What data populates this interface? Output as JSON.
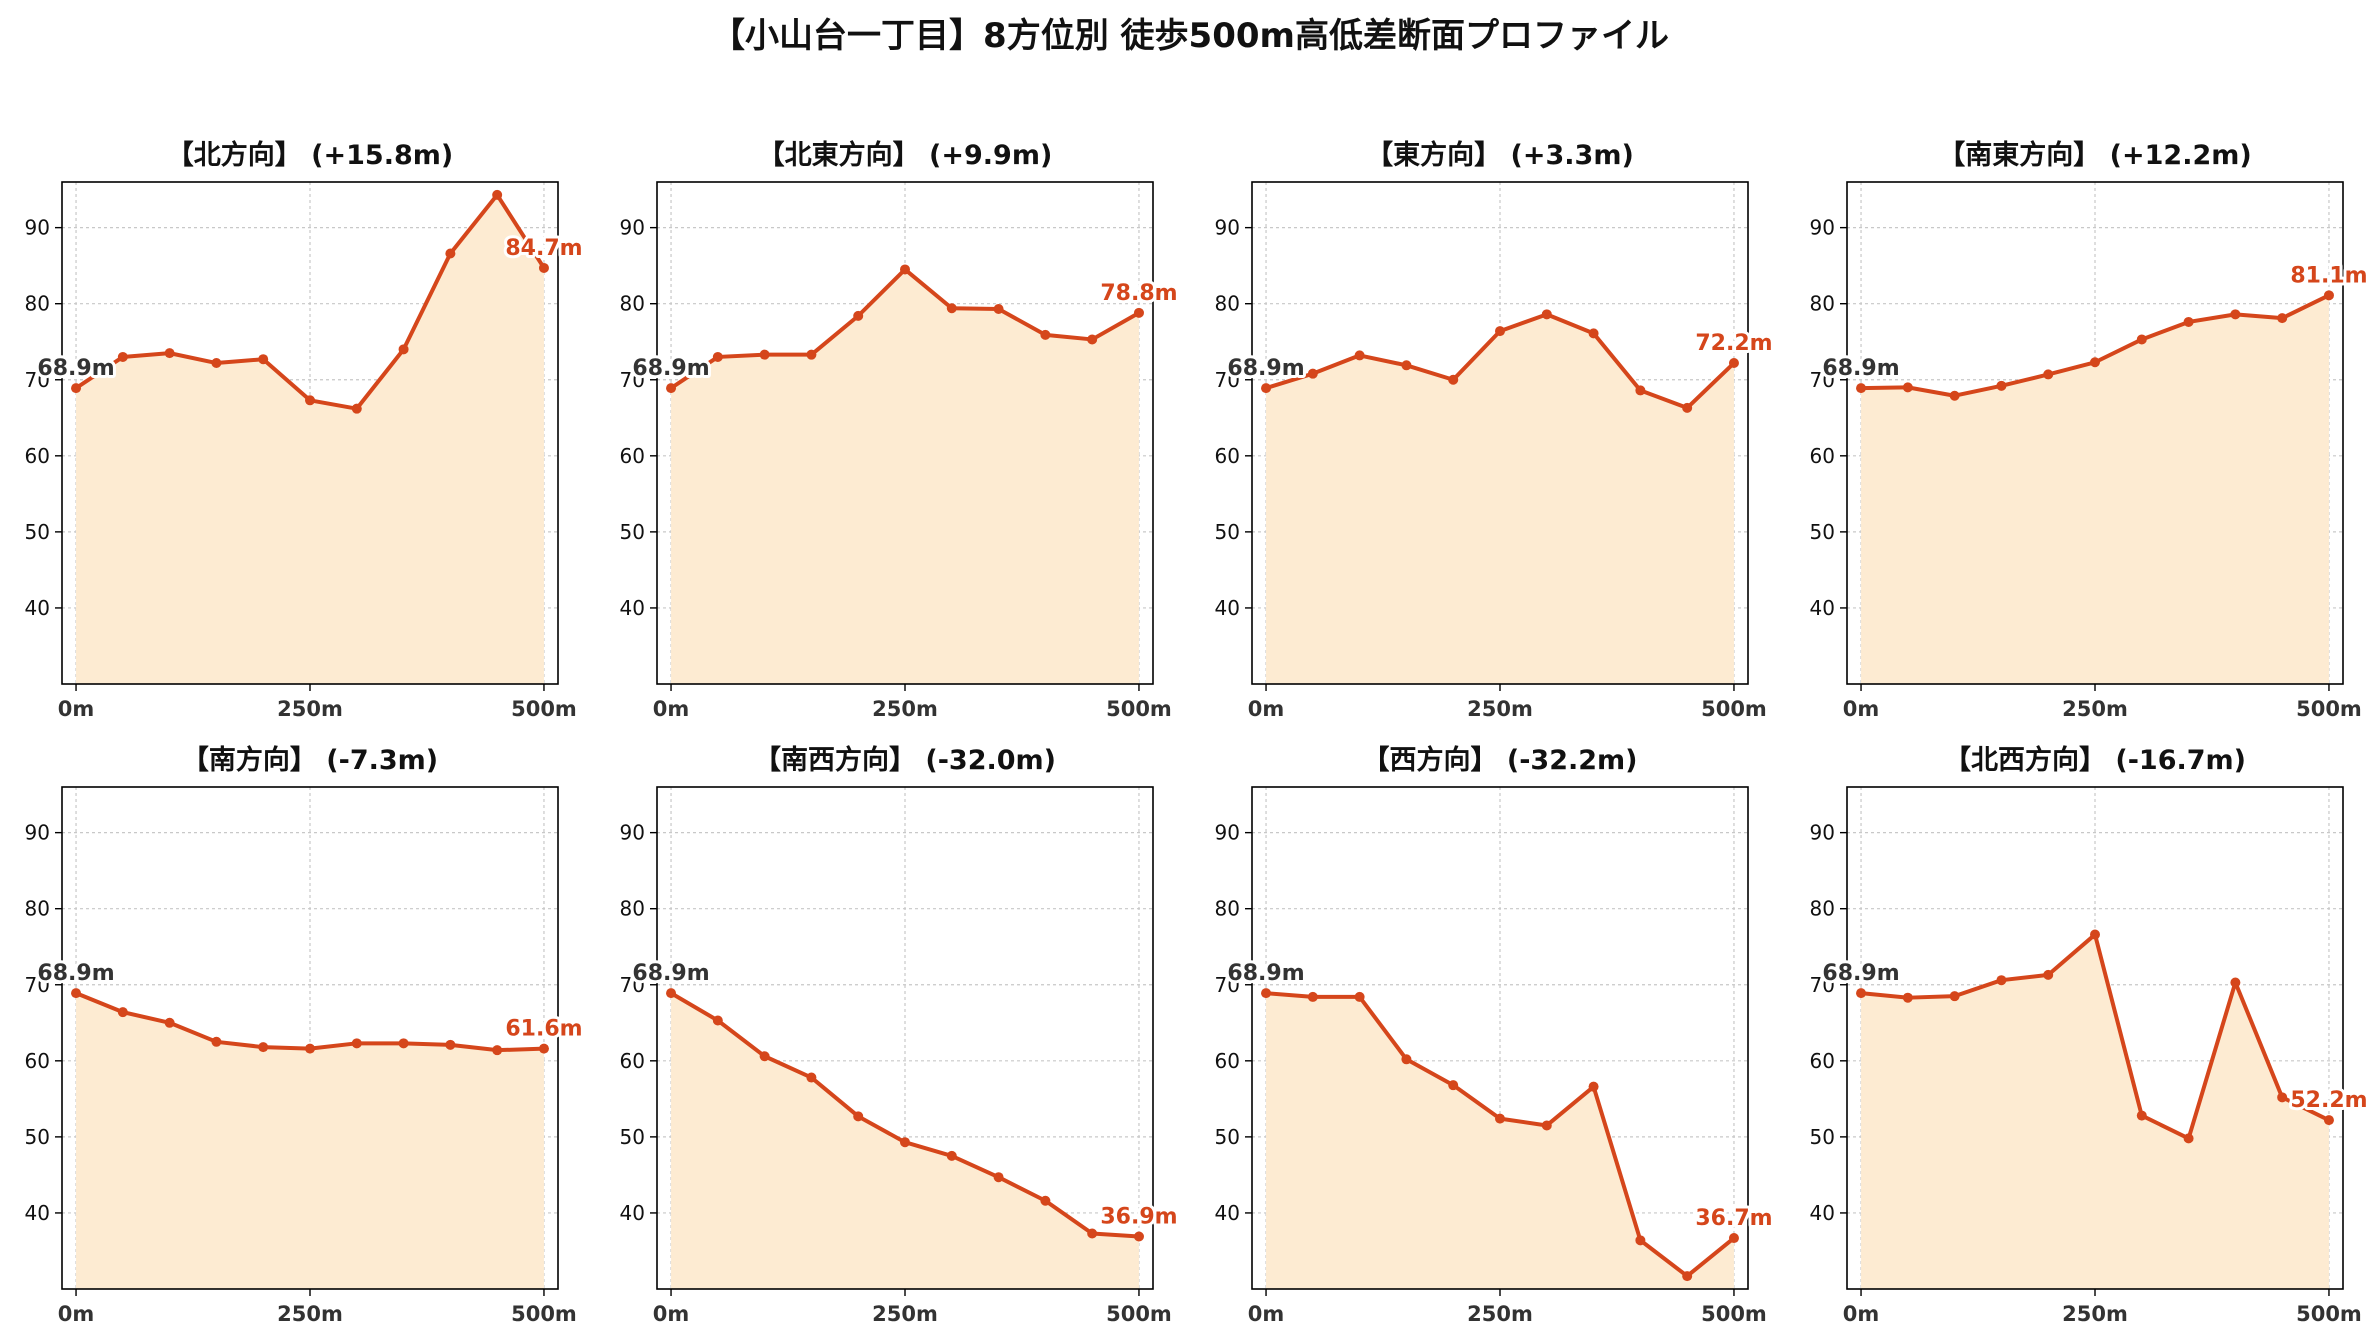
{
  "title": "【小山台一丁目】8方位別 徒歩500m高低差断面プロファイル",
  "colors": {
    "line": "#d5461b",
    "fill": "#fdebd2",
    "end_label": "#d5461b",
    "start_label": "#333333",
    "grid": "#c8c8c8",
    "axis": "#000000"
  },
  "chart_data": [
    {
      "type": "area",
      "title": "【北方向】 (+15.8m)",
      "x": [
        0,
        50,
        100,
        150,
        200,
        250,
        300,
        350,
        400,
        450,
        500
      ],
      "values": [
        68.9,
        73.0,
        73.5,
        72.2,
        72.7,
        67.3,
        66.2,
        74.0,
        86.6,
        94.3,
        84.7
      ],
      "start_label": "68.9m",
      "end_label": "84.7m",
      "x_ticks": [
        "0m",
        "250m",
        "500m"
      ],
      "y_ticks": [
        40,
        50,
        60,
        70,
        80,
        90
      ],
      "ylim": [
        30,
        96
      ],
      "xlim": [
        -15,
        515
      ],
      "grid": true
    },
    {
      "type": "area",
      "title": "【北東方向】 (+9.9m)",
      "x": [
        0,
        50,
        100,
        150,
        200,
        250,
        300,
        350,
        400,
        450,
        500
      ],
      "values": [
        68.9,
        73.0,
        73.3,
        73.3,
        78.4,
        84.5,
        79.4,
        79.3,
        75.9,
        75.3,
        78.8
      ],
      "start_label": "68.9m",
      "end_label": "78.8m",
      "x_ticks": [
        "0m",
        "250m",
        "500m"
      ],
      "y_ticks": [
        40,
        50,
        60,
        70,
        80,
        90
      ],
      "ylim": [
        30,
        96
      ],
      "xlim": [
        -15,
        515
      ],
      "grid": true
    },
    {
      "type": "area",
      "title": "【東方向】 (+3.3m)",
      "x": [
        0,
        50,
        100,
        150,
        200,
        250,
        300,
        350,
        400,
        450,
        500
      ],
      "values": [
        68.9,
        70.8,
        73.2,
        71.9,
        70.0,
        76.4,
        78.6,
        76.1,
        68.6,
        66.3,
        72.2
      ],
      "start_label": "68.9m",
      "end_label": "72.2m",
      "x_ticks": [
        "0m",
        "250m",
        "500m"
      ],
      "y_ticks": [
        40,
        50,
        60,
        70,
        80,
        90
      ],
      "ylim": [
        30,
        96
      ],
      "xlim": [
        -15,
        515
      ],
      "grid": true
    },
    {
      "type": "area",
      "title": "【南東方向】 (+12.2m)",
      "x": [
        0,
        50,
        100,
        150,
        200,
        250,
        300,
        350,
        400,
        450,
        500
      ],
      "values": [
        68.9,
        69.0,
        67.9,
        69.2,
        70.7,
        72.3,
        75.3,
        77.6,
        78.6,
        78.1,
        81.1
      ],
      "start_label": "68.9m",
      "end_label": "81.1m",
      "x_ticks": [
        "0m",
        "250m",
        "500m"
      ],
      "y_ticks": [
        40,
        50,
        60,
        70,
        80,
        90
      ],
      "ylim": [
        30,
        96
      ],
      "xlim": [
        -15,
        515
      ],
      "grid": true
    },
    {
      "type": "area",
      "title": "【南方向】 (-7.3m)",
      "x": [
        0,
        50,
        100,
        150,
        200,
        250,
        300,
        350,
        400,
        450,
        500
      ],
      "values": [
        68.9,
        66.4,
        65.0,
        62.5,
        61.8,
        61.6,
        62.3,
        62.3,
        62.1,
        61.4,
        61.6
      ],
      "start_label": "68.9m",
      "end_label": "61.6m",
      "x_ticks": [
        "0m",
        "250m",
        "500m"
      ],
      "y_ticks": [
        40,
        50,
        60,
        70,
        80,
        90
      ],
      "ylim": [
        30,
        96
      ],
      "xlim": [
        -15,
        515
      ],
      "grid": true
    },
    {
      "type": "area",
      "title": "【南西方向】 (-32.0m)",
      "x": [
        0,
        50,
        100,
        150,
        200,
        250,
        300,
        350,
        400,
        450,
        500
      ],
      "values": [
        68.9,
        65.3,
        60.6,
        57.8,
        52.7,
        49.3,
        47.5,
        44.7,
        41.6,
        37.3,
        36.9
      ],
      "start_label": "68.9m",
      "end_label": "36.9m",
      "x_ticks": [
        "0m",
        "250m",
        "500m"
      ],
      "y_ticks": [
        40,
        50,
        60,
        70,
        80,
        90
      ],
      "ylim": [
        30,
        96
      ],
      "xlim": [
        -15,
        515
      ],
      "grid": true
    },
    {
      "type": "area",
      "title": "【西方向】 (-32.2m)",
      "x": [
        0,
        50,
        100,
        150,
        200,
        250,
        300,
        350,
        400,
        450,
        500
      ],
      "values": [
        68.9,
        68.4,
        68.4,
        60.2,
        56.8,
        52.4,
        51.5,
        56.6,
        36.4,
        31.7,
        36.7
      ],
      "start_label": "68.9m",
      "end_label": "36.7m",
      "x_ticks": [
        "0m",
        "250m",
        "500m"
      ],
      "y_ticks": [
        40,
        50,
        60,
        70,
        80,
        90
      ],
      "ylim": [
        30,
        96
      ],
      "xlim": [
        -15,
        515
      ],
      "grid": true
    },
    {
      "type": "area",
      "title": "【北西方向】 (-16.7m)",
      "x": [
        0,
        50,
        100,
        150,
        200,
        250,
        300,
        350,
        400,
        450,
        500
      ],
      "values": [
        68.9,
        68.3,
        68.5,
        70.6,
        71.3,
        76.6,
        52.8,
        49.8,
        70.3,
        55.2,
        52.2
      ],
      "start_label": "68.9m",
      "end_label": "52.2m",
      "x_ticks": [
        "0m",
        "250m",
        "500m"
      ],
      "y_ticks": [
        40,
        50,
        60,
        70,
        80,
        90
      ],
      "ylim": [
        30,
        96
      ],
      "xlim": [
        -15,
        515
      ],
      "grid": true
    }
  ]
}
